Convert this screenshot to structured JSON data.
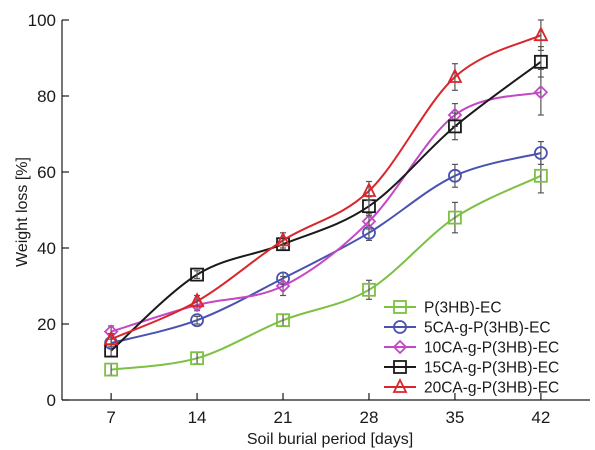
{
  "chart_data": {
    "type": "line",
    "xlabel": "Soil burial period [days]",
    "ylabel": "Weight loss [%]",
    "x": [
      7,
      14,
      21,
      28,
      35,
      42
    ],
    "x_tick_labels": [
      "7",
      "14",
      "21",
      "28",
      "35",
      "42"
    ],
    "xlim": [
      3,
      46
    ],
    "ylim": [
      0,
      100
    ],
    "y_ticks": [
      0,
      20,
      40,
      60,
      80,
      100
    ],
    "y_tick_labels": [
      "0",
      "20",
      "40",
      "60",
      "80",
      "100"
    ],
    "grid": false,
    "legend_position": "bottom-right",
    "series": [
      {
        "name": "P(3HB)-EC",
        "color": "#7cc142",
        "marker": "square",
        "values": [
          8,
          11,
          21,
          29,
          48,
          59
        ],
        "errors": [
          1.5,
          1.5,
          1.5,
          2.5,
          4,
          4.5
        ]
      },
      {
        "name": "5CA-g-P(3HB)-EC",
        "color": "#4a52b0",
        "marker": "circle",
        "values": [
          15,
          21,
          32,
          44,
          59,
          65
        ],
        "errors": [
          1,
          1,
          1.5,
          2,
          3,
          3
        ]
      },
      {
        "name": "10CA-g-P(3HB)-EC",
        "color": "#c547c5",
        "marker": "diamond",
        "values": [
          18,
          25,
          30,
          47,
          75,
          81
        ],
        "errors": [
          1.5,
          1.5,
          2.5,
          2,
          3,
          6
        ]
      },
      {
        "name": "15CA-g-P(3HB)-EC",
        "color": "#1a1a1a",
        "marker": "square",
        "values": [
          13,
          33,
          41,
          51,
          72,
          89
        ],
        "errors": [
          1.5,
          1,
          1.5,
          2.5,
          3.5,
          4
        ]
      },
      {
        "name": "20CA-g-P(3HB)-EC",
        "color": "#d9262c",
        "marker": "triangle",
        "values": [
          16,
          26,
          42,
          55,
          85,
          96
        ],
        "errors": [
          1.5,
          1.5,
          2,
          2.5,
          3.5,
          4
        ]
      }
    ]
  }
}
